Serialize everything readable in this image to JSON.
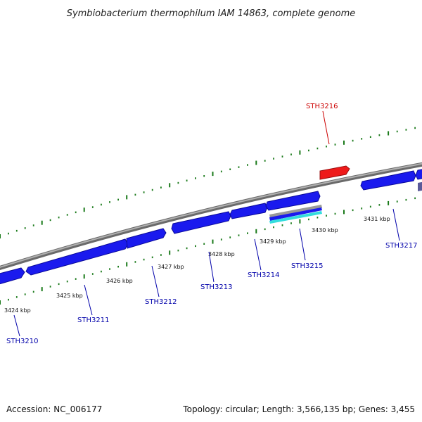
{
  "title": "Symbiobacterium thermophilum IAM 14863, complete genome",
  "footer": {
    "accession": "Accession: NC_006177",
    "summary": "Topology: circular; Length: 3,566,135 bp; Genes: 3,455"
  },
  "colors": {
    "backbone": "#8a8a8a",
    "forward_gene": "#1a1aee",
    "reverse_gene": "#ee1a1a",
    "ticks": "#1a7a1a",
    "label_forward": "#0000aa",
    "label_reverse": "#cc0000",
    "rna_feature": "#33dddd"
  },
  "ticks": [
    {
      "label": "3424 kbp"
    },
    {
      "label": "3425 kbp"
    },
    {
      "label": "3426 kbp"
    },
    {
      "label": "3427 kbp"
    },
    {
      "label": "3428 kbp"
    },
    {
      "label": "3429 kbp"
    },
    {
      "label": "3430 kbp"
    },
    {
      "label": "3431 kbp"
    }
  ],
  "genes": [
    {
      "name": "STH3210",
      "strand": "forward"
    },
    {
      "name": "STH3211",
      "strand": "forward"
    },
    {
      "name": "STH3212",
      "strand": "forward"
    },
    {
      "name": "STH3213",
      "strand": "forward"
    },
    {
      "name": "STH3214",
      "strand": "forward"
    },
    {
      "name": "STH3215",
      "strand": "forward"
    },
    {
      "name": "STH3216",
      "strand": "reverse"
    },
    {
      "name": "STH3217",
      "strand": "forward"
    }
  ]
}
